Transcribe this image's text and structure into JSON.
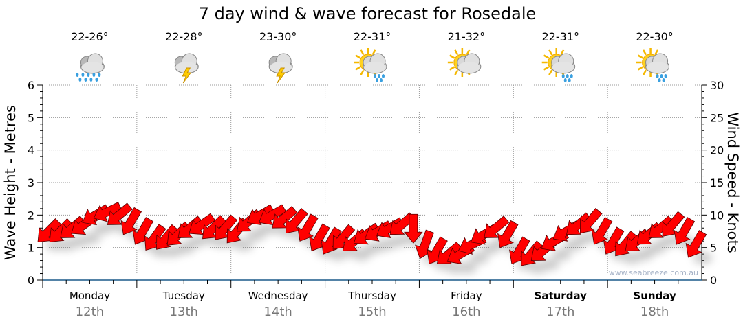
{
  "title": "7 day wind & wave forecast for Rosedale",
  "watermark": "www.seabreeze.com.au",
  "days": [
    {
      "name": "Monday",
      "date": "12th",
      "temp": "22-26°",
      "icon": "rain-cloud-icon",
      "bold": false
    },
    {
      "name": "Tuesday",
      "date": "13th",
      "temp": "22-28°",
      "icon": "storm-cloud-icon",
      "bold": false
    },
    {
      "name": "Wednesday",
      "date": "14th",
      "temp": "23-30°",
      "icon": "storm-cloud-icon",
      "bold": false
    },
    {
      "name": "Thursday",
      "date": "15th",
      "temp": "22-31°",
      "icon": "sun-cloud-shower-icon",
      "bold": false
    },
    {
      "name": "Friday",
      "date": "16th",
      "temp": "21-32°",
      "icon": "sun-cloud-icon",
      "bold": false
    },
    {
      "name": "Saturday",
      "date": "17th",
      "temp": "22-31°",
      "icon": "sun-cloud-shower-icon",
      "bold": true
    },
    {
      "name": "Sunday",
      "date": "18th",
      "temp": "22-30°",
      "icon": "sun-cloud-shower-icon",
      "bold": true
    }
  ],
  "chart_data": {
    "type": "line",
    "title": "7 day wind & wave forecast for Rosedale",
    "ylabel": "Wave Height - Metres",
    "y2label": "Wind Speed - Knots",
    "ylim": [
      0,
      6
    ],
    "y2lim": [
      0,
      30
    ],
    "yticks": [
      "0",
      "1",
      "2",
      "3",
      "4",
      "5",
      "6"
    ],
    "y2ticks": [
      "0",
      "5",
      "10",
      "15",
      "20",
      "25",
      "30"
    ],
    "grid": true,
    "interval_hours": 3,
    "series": [
      {
        "name": "Wind speed (knots)",
        "color": "#ff0000",
        "values": [
          7.5,
          7.5,
          8,
          8.5,
          10,
          10.5,
          10,
          9,
          7.5,
          6.5,
          6.5,
          7,
          8,
          8.5,
          8,
          8,
          7.5,
          9,
          10,
          10,
          9.5,
          9,
          8,
          6.5,
          6,
          6.5,
          6,
          7,
          7.5,
          8,
          8.5,
          8,
          5.5,
          4.5,
          4,
          4,
          5.5,
          7,
          8,
          7,
          4.5,
          4,
          4.5,
          6,
          7.5,
          8.5,
          9,
          7.5,
          6,
          5.5,
          6,
          7,
          8,
          8.5,
          7.5,
          5.5
        ],
        "direction_deg": [
          315,
          315,
          320,
          325,
          330,
          335,
          320,
          300,
          300,
          305,
          310,
          315,
          320,
          325,
          315,
          310,
          310,
          320,
          330,
          330,
          320,
          310,
          300,
          300,
          300,
          310,
          320,
          325,
          330,
          330,
          320,
          270,
          290,
          300,
          320,
          330,
          335,
          330,
          320,
          300,
          300,
          310,
          320,
          330,
          330,
          320,
          310,
          300,
          300,
          310,
          320,
          320,
          320,
          310,
          300,
          300
        ]
      }
    ]
  }
}
